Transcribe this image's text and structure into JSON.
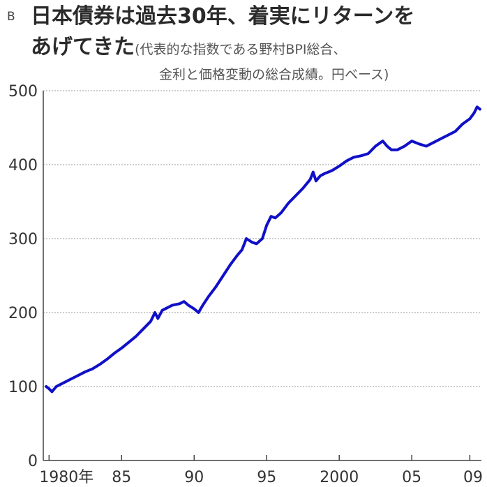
{
  "header": {
    "panel_label": "B",
    "title_line1": "日本債券は過去30年、着実にリターンを",
    "title_line2": "あげてきた",
    "subtitle_line1": "(代表的な指数である野村BPI総合、",
    "subtitle_line2": "金利と価格変動の総合成績。円ベース)"
  },
  "colors": {
    "line": "#1010c8",
    "grid": "#999999",
    "axis": "#444444"
  },
  "chart_data": {
    "type": "line",
    "title": "日本債券は過去30年、着実にリターンをあげてきた",
    "subtitle": "(代表的な指数である野村BPI総合、金利と価格変動の総合成績。円ベース)",
    "xlabel": "",
    "ylabel": "",
    "ylim": [
      0,
      500
    ],
    "xlim": [
      1979.6,
      2009.8
    ],
    "yticks": [
      0,
      100,
      200,
      300,
      400,
      500
    ],
    "ytick_labels": [
      "0",
      "100",
      "200",
      "300",
      "400",
      "500"
    ],
    "xticks": [
      1980,
      1985,
      1990,
      1995,
      2000,
      2005,
      2009
    ],
    "xtick_labels": [
      "1980年",
      "85",
      "90",
      "95",
      "2000",
      "05",
      "09"
    ],
    "grid": true,
    "series": [
      {
        "values": [
          [
            1979.8,
            100
          ],
          [
            1980.0,
            97
          ],
          [
            1980.2,
            93
          ],
          [
            1980.5,
            100
          ],
          [
            1981.0,
            105
          ],
          [
            1981.5,
            110
          ],
          [
            1982.0,
            115
          ],
          [
            1982.5,
            120
          ],
          [
            1983.0,
            124
          ],
          [
            1983.5,
            130
          ],
          [
            1984.0,
            137
          ],
          [
            1984.5,
            145
          ],
          [
            1985.0,
            152
          ],
          [
            1985.5,
            160
          ],
          [
            1986.0,
            168
          ],
          [
            1986.5,
            178
          ],
          [
            1987.0,
            188
          ],
          [
            1987.3,
            200
          ],
          [
            1987.5,
            192
          ],
          [
            1987.8,
            203
          ],
          [
            1988.0,
            205
          ],
          [
            1988.5,
            210
          ],
          [
            1989.0,
            212
          ],
          [
            1989.3,
            215
          ],
          [
            1989.6,
            210
          ],
          [
            1990.0,
            205
          ],
          [
            1990.3,
            200
          ],
          [
            1990.6,
            210
          ],
          [
            1991.0,
            222
          ],
          [
            1991.5,
            235
          ],
          [
            1992.0,
            250
          ],
          [
            1992.5,
            265
          ],
          [
            1993.0,
            278
          ],
          [
            1993.3,
            285
          ],
          [
            1993.6,
            300
          ],
          [
            1994.0,
            295
          ],
          [
            1994.3,
            293
          ],
          [
            1994.7,
            300
          ],
          [
            1995.0,
            318
          ],
          [
            1995.3,
            330
          ],
          [
            1995.6,
            328
          ],
          [
            1996.0,
            335
          ],
          [
            1996.5,
            348
          ],
          [
            1997.0,
            358
          ],
          [
            1997.5,
            368
          ],
          [
            1998.0,
            380
          ],
          [
            1998.2,
            390
          ],
          [
            1998.4,
            378
          ],
          [
            1998.7,
            385
          ],
          [
            1999.0,
            388
          ],
          [
            1999.5,
            392
          ],
          [
            2000.0,
            398
          ],
          [
            2000.5,
            405
          ],
          [
            2001.0,
            410
          ],
          [
            2001.5,
            412
          ],
          [
            2002.0,
            415
          ],
          [
            2002.5,
            425
          ],
          [
            2003.0,
            432
          ],
          [
            2003.3,
            425
          ],
          [
            2003.6,
            420
          ],
          [
            2004.0,
            420
          ],
          [
            2004.5,
            425
          ],
          [
            2005.0,
            432
          ],
          [
            2005.5,
            428
          ],
          [
            2006.0,
            425
          ],
          [
            2006.5,
            430
          ],
          [
            2007.0,
            435
          ],
          [
            2007.5,
            440
          ],
          [
            2008.0,
            445
          ],
          [
            2008.5,
            455
          ],
          [
            2009.0,
            462
          ],
          [
            2009.3,
            470
          ],
          [
            2009.5,
            478
          ],
          [
            2009.7,
            475
          ]
        ]
      }
    ]
  }
}
